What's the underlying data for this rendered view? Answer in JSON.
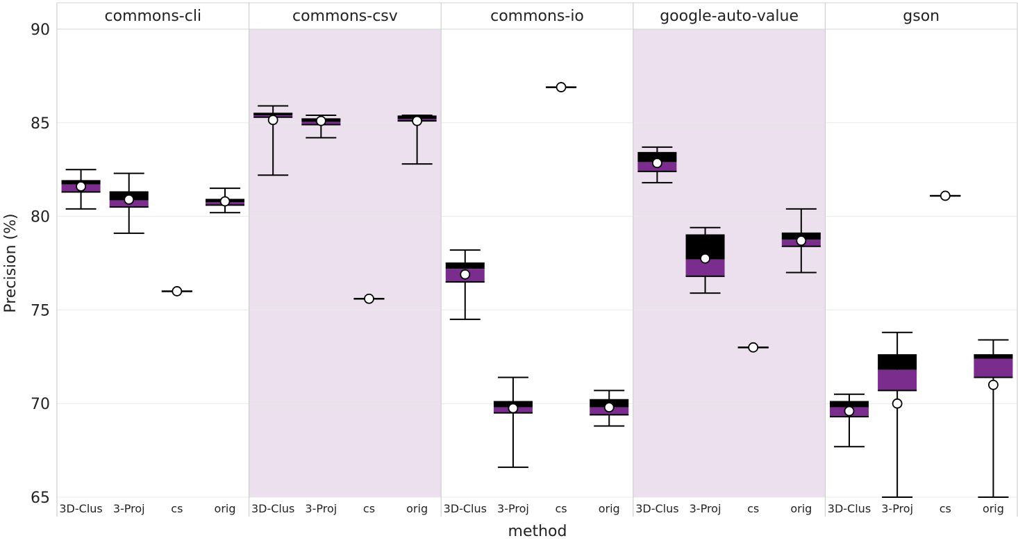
{
  "chart_data": {
    "type": "box",
    "xlabel": "method",
    "ylabel": "Precision (%)",
    "ylim": [
      65,
      90
    ],
    "yticks": [
      "65",
      "70",
      "75",
      "80",
      "85",
      "90"
    ],
    "grid": true,
    "categories": [
      "3D-Clus",
      "3-Proj",
      "cs",
      "orig"
    ],
    "colors": {
      "upper_box": "#000000",
      "lower_box": "#7b2d8e",
      "shaded_panel": "#ece0ee",
      "grid": "#e8e8e8",
      "panel_border": "#cfcfcf"
    },
    "facets": [
      {
        "name": "commons-cli",
        "shaded": false,
        "boxes": [
          {
            "method": "3D-Clus",
            "whisker_low": 80.4,
            "q1": 81.3,
            "median": 81.7,
            "q3": 81.9,
            "whisker_high": 82.5,
            "mean": 81.6
          },
          {
            "method": "3-Proj",
            "whisker_low": 79.1,
            "q1": 80.5,
            "median": 80.85,
            "q3": 81.3,
            "whisker_high": 82.3,
            "mean": 80.9
          },
          {
            "method": "cs",
            "whisker_low": 76.0,
            "q1": 76.0,
            "median": 76.0,
            "q3": 76.0,
            "whisker_high": 76.0,
            "mean": 76.0
          },
          {
            "method": "orig",
            "whisker_low": 80.2,
            "q1": 80.6,
            "median": 80.75,
            "q3": 80.9,
            "whisker_high": 81.5,
            "mean": 80.8
          }
        ]
      },
      {
        "name": "commons-csv",
        "shaded": true,
        "boxes": [
          {
            "method": "3D-Clus",
            "whisker_low": 82.2,
            "q1": 85.3,
            "median": 85.4,
            "q3": 85.5,
            "whisker_high": 85.9,
            "mean": 85.15
          },
          {
            "method": "3-Proj",
            "whisker_low": 84.2,
            "q1": 84.9,
            "median": 85.05,
            "q3": 85.2,
            "whisker_high": 85.4,
            "mean": 85.1
          },
          {
            "method": "cs",
            "whisker_low": 75.6,
            "q1": 75.6,
            "median": 75.6,
            "q3": 75.6,
            "whisker_high": 75.6,
            "mean": 75.6
          },
          {
            "method": "orig",
            "whisker_low": 82.8,
            "q1": 85.1,
            "median": 85.2,
            "q3": 85.35,
            "whisker_high": 85.4,
            "mean": 85.1
          }
        ]
      },
      {
        "name": "commons-io",
        "shaded": false,
        "boxes": [
          {
            "method": "3D-Clus",
            "whisker_low": 74.5,
            "q1": 76.5,
            "median": 77.2,
            "q3": 77.5,
            "whisker_high": 78.2,
            "mean": 76.9
          },
          {
            "method": "3-Proj",
            "whisker_low": 66.6,
            "q1": 69.5,
            "median": 69.8,
            "q3": 70.1,
            "whisker_high": 71.4,
            "mean": 69.75
          },
          {
            "method": "cs",
            "whisker_low": 86.9,
            "q1": 86.9,
            "median": 86.9,
            "q3": 86.9,
            "whisker_high": 86.9,
            "mean": 86.9
          },
          {
            "method": "orig",
            "whisker_low": 68.8,
            "q1": 69.4,
            "median": 69.8,
            "q3": 70.2,
            "whisker_high": 70.7,
            "mean": 69.8
          }
        ]
      },
      {
        "name": "google-auto-value",
        "shaded": true,
        "boxes": [
          {
            "method": "3D-Clus",
            "whisker_low": 81.8,
            "q1": 82.4,
            "median": 82.9,
            "q3": 83.4,
            "whisker_high": 83.7,
            "mean": 82.85
          },
          {
            "method": "3-Proj",
            "whisker_low": 75.9,
            "q1": 76.8,
            "median": 77.7,
            "q3": 79.0,
            "whisker_high": 79.4,
            "mean": 77.75
          },
          {
            "method": "cs",
            "whisker_low": 73.0,
            "q1": 73.0,
            "median": 73.0,
            "q3": 73.0,
            "whisker_high": 73.0,
            "mean": 73.0
          },
          {
            "method": "orig",
            "whisker_low": 77.0,
            "q1": 78.4,
            "median": 78.75,
            "q3": 79.1,
            "whisker_high": 80.4,
            "mean": 78.7
          }
        ]
      },
      {
        "name": "gson",
        "shaded": false,
        "boxes": [
          {
            "method": "3D-Clus",
            "whisker_low": 67.7,
            "q1": 69.3,
            "median": 69.8,
            "q3": 70.1,
            "whisker_high": 70.5,
            "mean": 69.6
          },
          {
            "method": "3-Proj",
            "whisker_low": 65.0,
            "q1": 70.7,
            "median": 71.8,
            "q3": 72.6,
            "whisker_high": 73.8,
            "mean": 70.0
          },
          {
            "method": "cs",
            "whisker_low": 81.1,
            "q1": 81.1,
            "median": 81.1,
            "q3": 81.1,
            "whisker_high": 81.1,
            "mean": 81.1
          },
          {
            "method": "orig",
            "whisker_low": 65.0,
            "q1": 71.4,
            "median": 72.4,
            "q3": 72.6,
            "whisker_high": 73.4,
            "mean": 71.0
          }
        ]
      }
    ]
  }
}
